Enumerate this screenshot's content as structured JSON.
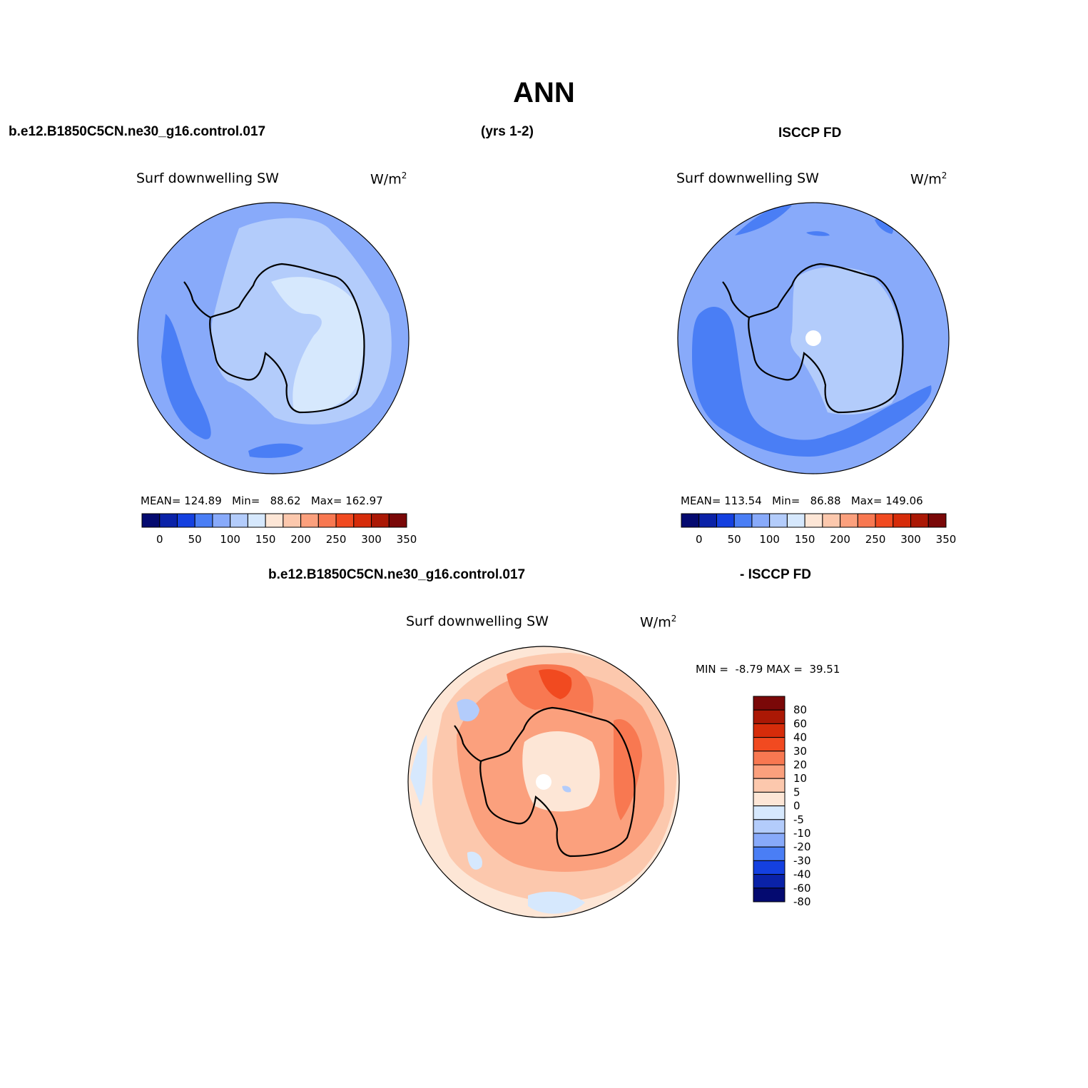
{
  "page_title": "ANN",
  "header": {
    "case_name": "b.e12.B1850C5CN.ne30_g16.control.017",
    "years": "(yrs 1-2)",
    "obs_name": "ISCCP FD"
  },
  "diff_header": {
    "case_name": "b.e12.B1850C5CN.ne30_g16.control.017",
    "obs_name": "- ISCCP FD"
  },
  "colors": {
    "land_ice_outline": "#000000",
    "ocean_mid": "#88aafa",
    "ocean_dark": "#4a7ef5"
  },
  "chart_data": [
    {
      "type": "map",
      "panel": "model",
      "variable": "Surf downwelling SW",
      "units_base": "W/m",
      "units_exp": "2",
      "stats": {
        "mean_label": "MEAN=",
        "mean": "124.89",
        "min_label": "Min=",
        "min": "88.62",
        "max_label": "Max=",
        "max": "162.97"
      },
      "colorbar": {
        "ticks": [
          "0",
          "50",
          "100",
          "150",
          "200",
          "250",
          "300",
          "350"
        ],
        "colors": [
          "#040a70",
          "#0a22a8",
          "#1440e0",
          "#4a7ef5",
          "#88aafa",
          "#b3ccfb",
          "#d6e8fd",
          "#fde6d6",
          "#fcc8ad",
          "#fba07d",
          "#f87851",
          "#f14a20",
          "#d62c0a",
          "#ab1805",
          "#7a0808"
        ]
      }
    },
    {
      "type": "map",
      "panel": "obs",
      "variable": "Surf downwelling SW",
      "units_base": "W/m",
      "units_exp": "2",
      "stats": {
        "mean_label": "MEAN=",
        "mean": "113.54",
        "min_label": "Min=",
        "min": "86.88",
        "max_label": "Max=",
        "max": "149.06"
      },
      "colorbar": {
        "ticks": [
          "0",
          "50",
          "100",
          "150",
          "200",
          "250",
          "300",
          "350"
        ],
        "colors": [
          "#040a70",
          "#0a22a8",
          "#1440e0",
          "#4a7ef5",
          "#88aafa",
          "#b3ccfb",
          "#d6e8fd",
          "#fde6d6",
          "#fcc8ad",
          "#fba07d",
          "#f87851",
          "#f14a20",
          "#d62c0a",
          "#ab1805",
          "#7a0808"
        ]
      }
    },
    {
      "type": "map",
      "panel": "difference",
      "variable": "Surf downwelling SW",
      "units_base": "W/m",
      "units_exp": "2",
      "stats": {
        "min_label": "MIN =",
        "min": "-8.79",
        "max_label": "MAX =",
        "max": "39.51"
      },
      "colorbar": {
        "ticks": [
          "80",
          "60",
          "40",
          "30",
          "20",
          "10",
          "5",
          "0",
          "-5",
          "-10",
          "-20",
          "-30",
          "-40",
          "-60",
          "-80"
        ],
        "colors": [
          "#7a0808",
          "#ab1805",
          "#d62c0a",
          "#f14a20",
          "#f87851",
          "#fba07d",
          "#fcc8ad",
          "#fde6d6",
          "#d6e8fd",
          "#b3ccfb",
          "#88aafa",
          "#4a7ef5",
          "#1440e0",
          "#0a22a8",
          "#040a70"
        ]
      }
    }
  ]
}
